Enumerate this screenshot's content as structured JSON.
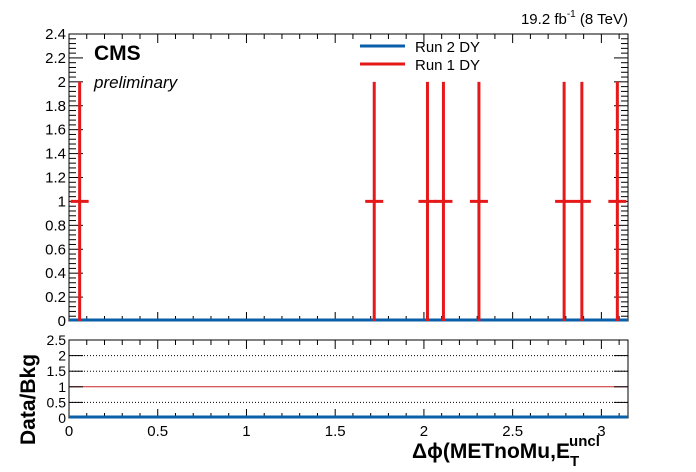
{
  "luminosity": {
    "value": "19.2 fb",
    "sup": "-1",
    "energy": " (8 TeV)"
  },
  "experiment": "CMS",
  "status": "preliminary",
  "chart_data": [
    {
      "type": "scatter",
      "panel": "main",
      "xlim": [
        0,
        3.15
      ],
      "ylim": [
        0,
        2.4
      ],
      "y_ticks": [
        "0",
        "0.2",
        "0.4",
        "0.6",
        "0.8",
        "1",
        "1.2",
        "1.4",
        "1.6",
        "1.8",
        "2",
        "2.2",
        "2.4"
      ],
      "x_ticks": [
        "0",
        "0.5",
        "1",
        "1.5",
        "2",
        "2.5",
        "3"
      ],
      "legend_position": "top-center",
      "series": [
        {
          "name": "Run 2 DY",
          "color": "#0a5fa8",
          "style": "flat-line",
          "y": 0
        },
        {
          "name": "Run 1 DY",
          "color": "#e5181a",
          "style": "error-bars",
          "points": [
            {
              "x": 0.06,
              "y": 1,
              "y_low": 0,
              "y_high": 2
            },
            {
              "x": 1.72,
              "y": 1,
              "y_low": 0,
              "y_high": 2
            },
            {
              "x": 2.02,
              "y": 1,
              "y_low": 0,
              "y_high": 2
            },
            {
              "x": 2.11,
              "y": 1,
              "y_low": 0,
              "y_high": 2
            },
            {
              "x": 2.31,
              "y": 1,
              "y_low": 0,
              "y_high": 2
            },
            {
              "x": 2.79,
              "y": 1,
              "y_low": 0,
              "y_high": 2
            },
            {
              "x": 2.89,
              "y": 1,
              "y_low": 0,
              "y_high": 2
            },
            {
              "x": 3.09,
              "y": 1,
              "y_low": 0,
              "y_high": 2
            }
          ]
        }
      ]
    },
    {
      "type": "line",
      "panel": "ratio",
      "xlim": [
        0,
        3.15
      ],
      "ylim": [
        0,
        2.5
      ],
      "y_ticks": [
        "0",
        "0.5",
        "1",
        "1.5",
        "2",
        "2.5"
      ],
      "x_ticks": [
        "0",
        "0.5",
        "1",
        "1.5",
        "2",
        "2.5",
        "3"
      ],
      "ylabel": "Data/Bkg",
      "xlabel": {
        "prefix": "Δϕ(METnoMu,E",
        "sub": "T",
        "sup": "uncl"
      },
      "reference_line": {
        "y": 1,
        "color": "#cc2222"
      },
      "dotted_gridlines": [
        0.5,
        1.5,
        2,
        2.5
      ],
      "baseline": {
        "y": 0,
        "color": "#0a5fa8"
      }
    }
  ]
}
